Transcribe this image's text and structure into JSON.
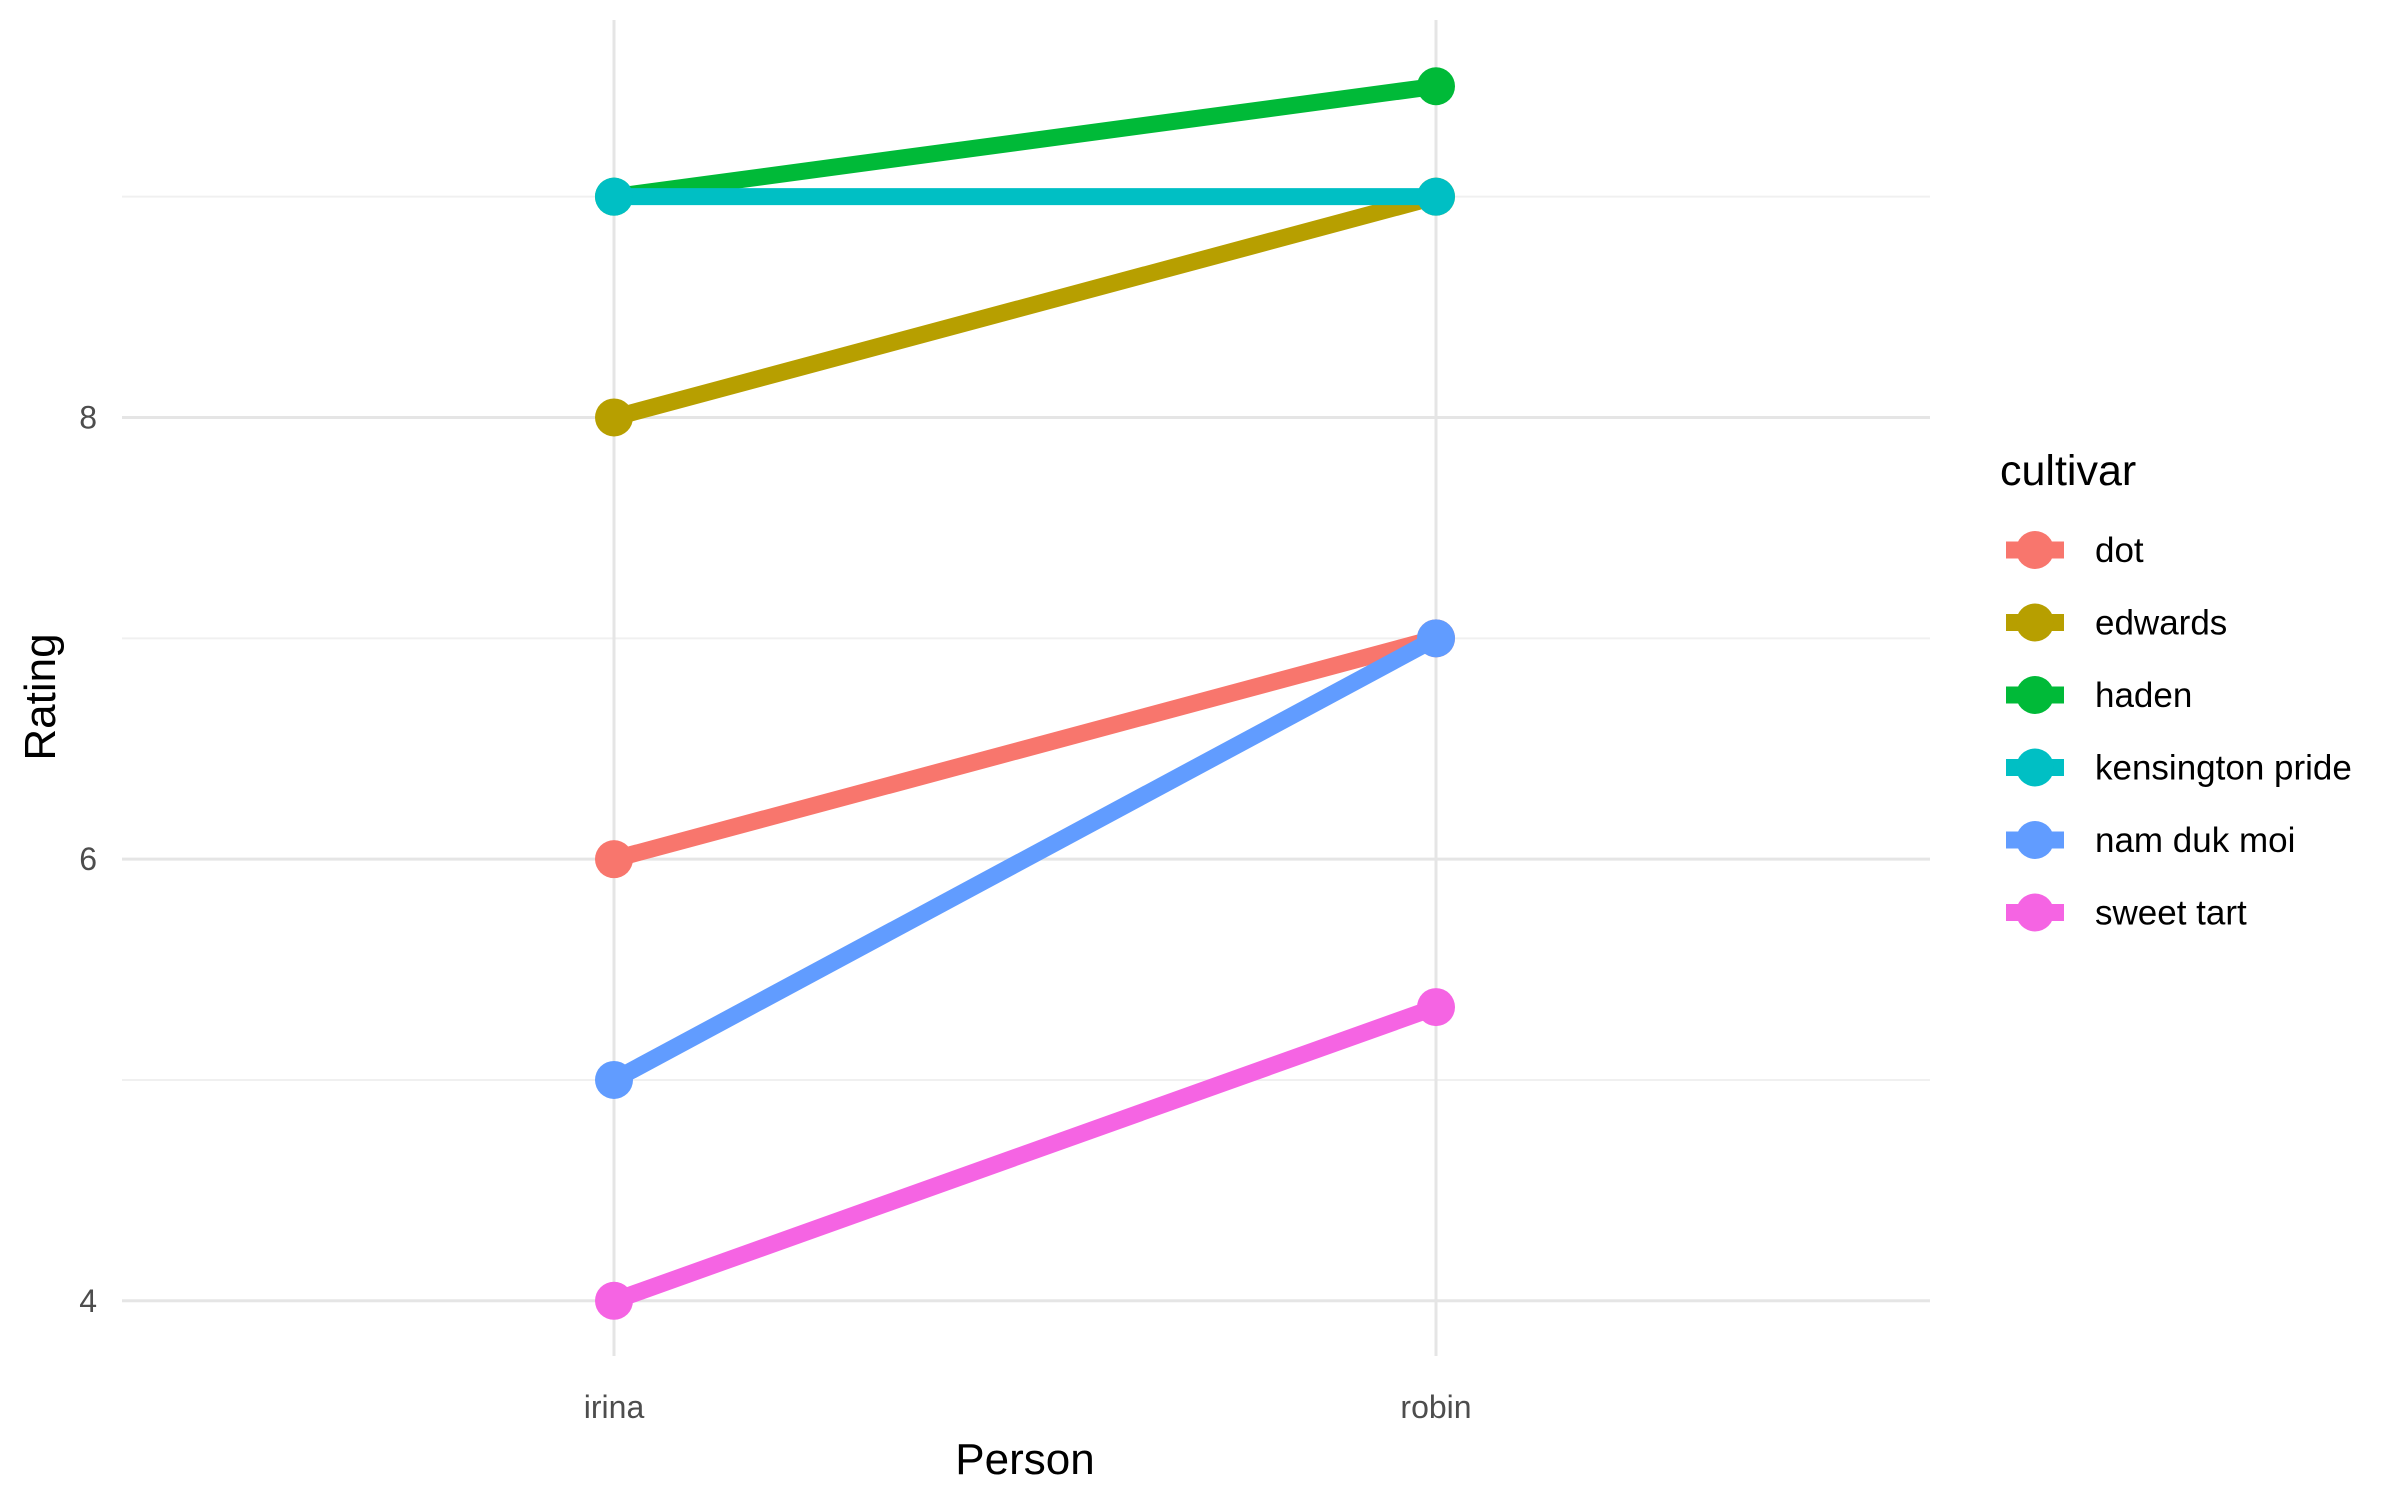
{
  "chart_data": {
    "type": "line",
    "x_axis_title": "Person",
    "y_axis_title": "Rating",
    "categories": [
      "irina",
      "robin"
    ],
    "y_ticks": [
      "4",
      "6",
      "8"
    ],
    "y_tick_values": [
      4,
      6,
      8
    ],
    "ylim": [
      3.75,
      9.8
    ],
    "grid": true,
    "legend": {
      "title": "cultivar",
      "placement": "right"
    },
    "series": [
      {
        "name": "dot",
        "color": "#F8766D",
        "values": [
          6,
          7
        ]
      },
      {
        "name": "edwards",
        "color": "#B79F00",
        "values": [
          8,
          9
        ]
      },
      {
        "name": "haden",
        "color": "#00BA38",
        "values": [
          9,
          9.5
        ]
      },
      {
        "name": "kensington pride",
        "color": "#00BFC4",
        "values": [
          9,
          9
        ]
      },
      {
        "name": "nam duk moi",
        "color": "#619CFF",
        "values": [
          5,
          7
        ]
      },
      {
        "name": "sweet tart",
        "color": "#F564E3",
        "values": [
          4,
          5.33
        ]
      }
    ]
  }
}
